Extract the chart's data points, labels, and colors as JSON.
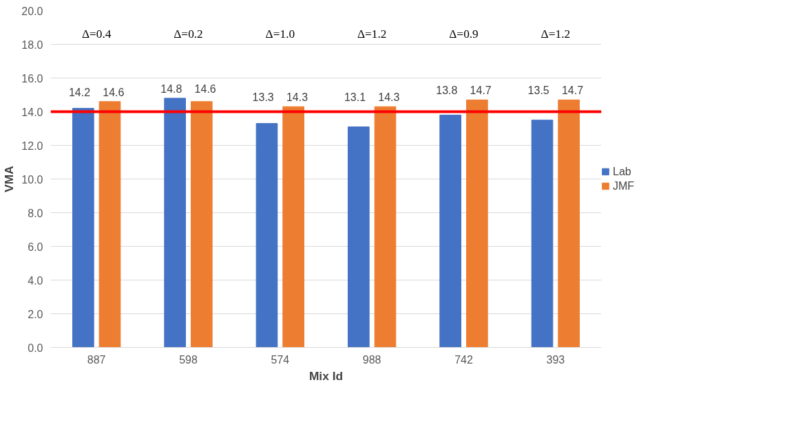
{
  "chart_data": {
    "type": "bar",
    "xlabel": "Mix Id",
    "ylabel": "VMA",
    "categories": [
      "887",
      "598",
      "574",
      "988",
      "742",
      "393"
    ],
    "series": [
      {
        "name": "Lab",
        "color": "#4472c4",
        "values": [
          14.2,
          14.8,
          13.3,
          13.1,
          13.8,
          13.5
        ]
      },
      {
        "name": "JMF",
        "color": "#ed7d31",
        "values": [
          14.6,
          14.6,
          14.3,
          14.3,
          14.7,
          14.7
        ]
      }
    ],
    "ylim": [
      0,
      20
    ],
    "yticks": [
      {
        "value": 0,
        "label": "0.0"
      },
      {
        "value": 2,
        "label": "2.0"
      },
      {
        "value": 4,
        "label": "4.0"
      },
      {
        "value": 6,
        "label": "6.0"
      },
      {
        "value": 8,
        "label": "8.0"
      },
      {
        "value": 10,
        "label": "10.0"
      },
      {
        "value": 12,
        "label": "12.0"
      },
      {
        "value": 14,
        "label": "14.0"
      },
      {
        "value": 16,
        "label": "16.0"
      },
      {
        "value": 18,
        "label": "18.0"
      },
      {
        "value": 20,
        "label": "20.0"
      }
    ],
    "ref_lines": [
      {
        "axis": "y",
        "value": 14.0,
        "color": "#ff0000"
      }
    ],
    "annotations": [
      "Δ=0.4",
      "Δ=0.2",
      "Δ=1.0",
      "Δ=1.2",
      "Δ=0.9",
      "Δ=1.2"
    ],
    "data_labels": true,
    "grid": "y",
    "legend": "right"
  }
}
